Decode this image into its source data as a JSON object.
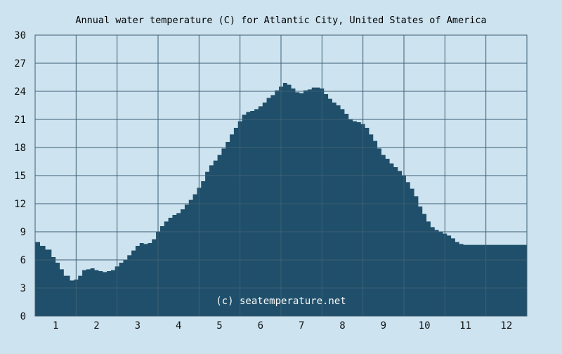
{
  "colors": {
    "background": "#cde3ef",
    "area_fill": "#1f4f6a",
    "grid": "#3d5f74",
    "text": "#111111",
    "watermark": "#ffffff"
  },
  "chart_data": {
    "type": "area",
    "title": "Annual water temperature (C) for Atlantic City, United States of America",
    "xlabel": "",
    "ylabel": "",
    "xlim": [
      0.5,
      12.5
    ],
    "ylim": [
      0,
      30
    ],
    "grid": true,
    "x_tick_labels": [
      "1",
      "2",
      "3",
      "4",
      "5",
      "6",
      "7",
      "8",
      "9",
      "10",
      "11",
      "12"
    ],
    "y_tick_labels": [
      "0",
      "3",
      "6",
      "9",
      "12",
      "15",
      "18",
      "21",
      "24",
      "27",
      "30"
    ],
    "watermark": "(c) seatemperature.net",
    "series": [
      {
        "x": [
          0.5,
          0.62,
          0.75,
          0.9,
          1.0,
          1.1,
          1.2,
          1.35,
          1.45,
          1.55,
          1.65,
          1.75,
          1.85,
          1.95,
          2.05,
          2.15,
          2.25,
          2.35,
          2.45,
          2.55,
          2.65,
          2.75,
          2.85,
          2.95,
          3.05,
          3.15,
          3.25,
          3.35,
          3.45,
          3.55,
          3.65,
          3.75,
          3.85,
          3.95,
          4.05,
          4.15,
          4.25,
          4.35,
          4.45,
          4.55,
          4.65,
          4.75,
          4.85,
          4.95,
          5.05,
          5.15,
          5.25,
          5.35,
          5.45,
          5.55,
          5.65,
          5.75,
          5.85,
          5.95,
          6.05,
          6.15,
          6.25,
          6.35,
          6.45,
          6.55,
          6.65,
          6.75,
          6.85,
          6.95,
          7.05,
          7.15,
          7.25,
          7.35,
          7.45,
          7.55,
          7.65,
          7.75,
          7.85,
          7.95,
          8.05,
          8.15,
          8.25,
          8.35,
          8.45,
          8.55,
          8.65,
          8.75,
          8.85,
          8.95,
          9.05,
          9.15,
          9.25,
          9.35,
          9.45,
          9.55,
          9.65,
          9.75,
          9.85,
          9.95,
          10.05,
          10.15,
          10.25,
          10.35,
          10.45,
          10.55,
          10.65,
          10.75,
          10.85,
          10.95,
          11.05,
          11.15,
          11.25,
          11.35,
          11.45,
          11.55,
          11.65,
          11.75,
          11.85,
          11.95,
          12.05,
          12.15,
          12.25,
          12.35,
          12.5
        ],
        "values": [
          7.9,
          7.5,
          7.1,
          6.3,
          5.7,
          5.0,
          4.3,
          3.8,
          3.9,
          4.3,
          4.9,
          5.0,
          5.1,
          4.9,
          4.8,
          4.7,
          4.8,
          4.9,
          5.3,
          5.7,
          6.0,
          6.5,
          7.0,
          7.5,
          7.8,
          7.7,
          7.8,
          8.2,
          9.0,
          9.6,
          10.1,
          10.5,
          10.8,
          11.0,
          11.4,
          11.9,
          12.4,
          13.0,
          13.7,
          14.4,
          15.4,
          16.1,
          16.6,
          17.2,
          17.9,
          18.6,
          19.4,
          20.1,
          20.8,
          21.5,
          21.8,
          21.9,
          22.1,
          22.4,
          22.8,
          23.3,
          23.6,
          24.1,
          24.5,
          24.9,
          24.7,
          24.3,
          23.9,
          23.8,
          24.1,
          24.2,
          24.4,
          24.4,
          24.3,
          23.7,
          23.2,
          22.8,
          22.5,
          22.1,
          21.6,
          21.0,
          20.8,
          20.7,
          20.5,
          20.1,
          19.4,
          18.7,
          17.9,
          17.2,
          16.8,
          16.3,
          15.9,
          15.5,
          15.0,
          14.3,
          13.6,
          12.8,
          11.7,
          10.9,
          10.1,
          9.5,
          9.2,
          9.0,
          8.8,
          8.6,
          8.3,
          7.9,
          7.7,
          7.6,
          7.6,
          7.6,
          7.6,
          7.6,
          7.6,
          7.6,
          7.6,
          7.6,
          7.6,
          7.6,
          7.6,
          7.6,
          7.6,
          7.6,
          7.6
        ]
      }
    ]
  }
}
